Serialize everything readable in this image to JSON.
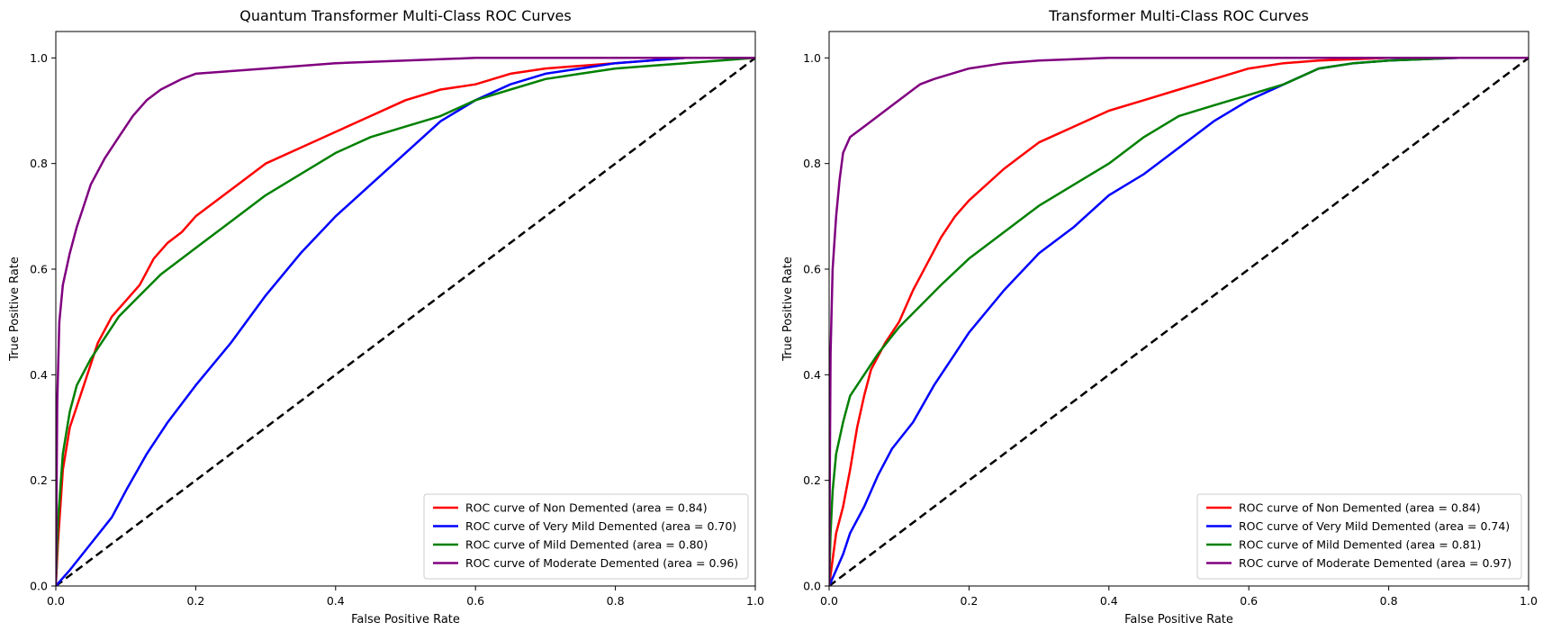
{
  "chart_data": [
    {
      "type": "line",
      "title": "Quantum Transformer Multi-Class ROC Curves",
      "xlabel": "False Positive Rate",
      "ylabel": "True Positive Rate",
      "xlim": [
        0.0,
        1.0
      ],
      "ylim": [
        0.0,
        1.05
      ],
      "xticks": [
        "0.0",
        "0.2",
        "0.4",
        "0.6",
        "0.8",
        "1.0"
      ],
      "yticks": [
        "0.0",
        "0.2",
        "0.4",
        "0.6",
        "0.8",
        "1.0"
      ],
      "grid": false,
      "legend_position": "lower-right",
      "reference_line": {
        "x": [
          0,
          1
        ],
        "y": [
          0,
          1
        ],
        "color": "#000000",
        "style": "dashed"
      },
      "series": [
        {
          "name": "ROC curve of Non Demented (area = 0.84)",
          "color": "#ff0000",
          "x": [
            0,
            0.003,
            0.01,
            0.02,
            0.04,
            0.06,
            0.08,
            0.1,
            0.12,
            0.14,
            0.16,
            0.18,
            0.2,
            0.25,
            0.3,
            0.35,
            0.4,
            0.45,
            0.5,
            0.55,
            0.6,
            0.65,
            0.7,
            0.75,
            0.8,
            0.85,
            0.9,
            0.95,
            1.0
          ],
          "y": [
            0,
            0.08,
            0.22,
            0.3,
            0.38,
            0.46,
            0.51,
            0.54,
            0.57,
            0.62,
            0.65,
            0.67,
            0.7,
            0.75,
            0.8,
            0.83,
            0.86,
            0.89,
            0.92,
            0.94,
            0.95,
            0.97,
            0.98,
            0.985,
            0.99,
            0.995,
            1.0,
            1.0,
            1.0
          ]
        },
        {
          "name": "ROC curve of Very Mild Demented (area = 0.70)",
          "color": "#0000ff",
          "x": [
            0,
            0.02,
            0.05,
            0.08,
            0.1,
            0.13,
            0.16,
            0.2,
            0.25,
            0.3,
            0.35,
            0.4,
            0.45,
            0.5,
            0.55,
            0.6,
            0.65,
            0.7,
            0.75,
            0.8,
            0.85,
            0.9,
            0.95,
            1.0
          ],
          "y": [
            0,
            0.03,
            0.08,
            0.13,
            0.18,
            0.25,
            0.31,
            0.38,
            0.46,
            0.55,
            0.63,
            0.7,
            0.76,
            0.82,
            0.88,
            0.92,
            0.95,
            0.97,
            0.98,
            0.99,
            0.995,
            1.0,
            1.0,
            1.0
          ]
        },
        {
          "name": "ROC curve of Mild Demented (area = 0.80)",
          "color": "#008000",
          "x": [
            0,
            0.003,
            0.01,
            0.02,
            0.03,
            0.05,
            0.07,
            0.09,
            0.12,
            0.15,
            0.18,
            0.2,
            0.25,
            0.3,
            0.35,
            0.4,
            0.45,
            0.5,
            0.55,
            0.6,
            0.65,
            0.7,
            0.75,
            0.8,
            0.85,
            0.9,
            0.95,
            1.0
          ],
          "y": [
            0,
            0.12,
            0.25,
            0.33,
            0.38,
            0.43,
            0.47,
            0.51,
            0.55,
            0.59,
            0.62,
            0.64,
            0.69,
            0.74,
            0.78,
            0.82,
            0.85,
            0.87,
            0.89,
            0.92,
            0.94,
            0.96,
            0.97,
            0.98,
            0.985,
            0.99,
            0.995,
            1.0
          ]
        },
        {
          "name": "ROC curve of Moderate Demented (area = 0.96)",
          "color": "#800080",
          "x": [
            0,
            0.002,
            0.005,
            0.01,
            0.02,
            0.03,
            0.04,
            0.05,
            0.07,
            0.09,
            0.11,
            0.13,
            0.15,
            0.18,
            0.2,
            0.25,
            0.3,
            0.4,
            0.5,
            0.6,
            0.7,
            0.8,
            0.9,
            1.0
          ],
          "y": [
            0,
            0.35,
            0.5,
            0.57,
            0.63,
            0.68,
            0.72,
            0.76,
            0.81,
            0.85,
            0.89,
            0.92,
            0.94,
            0.96,
            0.97,
            0.975,
            0.98,
            0.99,
            0.995,
            1.0,
            1.0,
            1.0,
            1.0,
            1.0
          ]
        }
      ]
    },
    {
      "type": "line",
      "title": "Transformer Multi-Class ROC Curves",
      "xlabel": "False Positive Rate",
      "ylabel": "True Positive Rate",
      "xlim": [
        0.0,
        1.0
      ],
      "ylim": [
        0.0,
        1.05
      ],
      "xticks": [
        "0.0",
        "0.2",
        "0.4",
        "0.6",
        "0.8",
        "1.0"
      ],
      "yticks": [
        "0.0",
        "0.2",
        "0.4",
        "0.6",
        "0.8",
        "1.0"
      ],
      "grid": false,
      "legend_position": "lower-right",
      "reference_line": {
        "x": [
          0,
          1
        ],
        "y": [
          0,
          1
        ],
        "color": "#000000",
        "style": "dashed"
      },
      "series": [
        {
          "name": "ROC curve of Non Demented (area = 0.84)",
          "color": "#ff0000",
          "x": [
            0,
            0.005,
            0.01,
            0.02,
            0.03,
            0.04,
            0.05,
            0.06,
            0.08,
            0.1,
            0.12,
            0.14,
            0.16,
            0.18,
            0.2,
            0.25,
            0.3,
            0.35,
            0.4,
            0.45,
            0.5,
            0.55,
            0.6,
            0.65,
            0.7,
            0.8,
            0.9,
            1.0
          ],
          "y": [
            0,
            0.05,
            0.1,
            0.15,
            0.22,
            0.3,
            0.36,
            0.41,
            0.46,
            0.5,
            0.56,
            0.61,
            0.66,
            0.7,
            0.73,
            0.79,
            0.84,
            0.87,
            0.9,
            0.92,
            0.94,
            0.96,
            0.98,
            0.99,
            0.995,
            1.0,
            1.0,
            1.0
          ]
        },
        {
          "name": "ROC curve of Very Mild Demented (area = 0.74)",
          "color": "#0000ff",
          "x": [
            0,
            0.01,
            0.02,
            0.03,
            0.05,
            0.07,
            0.09,
            0.12,
            0.15,
            0.18,
            0.2,
            0.25,
            0.3,
            0.35,
            0.4,
            0.45,
            0.5,
            0.55,
            0.6,
            0.65,
            0.7,
            0.75,
            0.8,
            0.9,
            1.0
          ],
          "y": [
            0,
            0.03,
            0.06,
            0.1,
            0.15,
            0.21,
            0.26,
            0.31,
            0.38,
            0.44,
            0.48,
            0.56,
            0.63,
            0.68,
            0.74,
            0.78,
            0.83,
            0.88,
            0.92,
            0.95,
            0.98,
            0.99,
            0.995,
            1.0,
            1.0
          ]
        },
        {
          "name": "ROC curve of Mild Demented (area = 0.81)",
          "color": "#008000",
          "x": [
            0,
            0.002,
            0.005,
            0.01,
            0.02,
            0.03,
            0.05,
            0.07,
            0.1,
            0.13,
            0.16,
            0.2,
            0.25,
            0.3,
            0.35,
            0.4,
            0.45,
            0.5,
            0.55,
            0.6,
            0.65,
            0.7,
            0.75,
            0.8,
            0.9,
            1.0
          ],
          "y": [
            0,
            0.1,
            0.18,
            0.25,
            0.31,
            0.36,
            0.4,
            0.44,
            0.49,
            0.53,
            0.57,
            0.62,
            0.67,
            0.72,
            0.76,
            0.8,
            0.85,
            0.89,
            0.91,
            0.93,
            0.95,
            0.98,
            0.99,
            0.995,
            1.0,
            1.0
          ]
        },
        {
          "name": "ROC curve of Moderate Demented (area = 0.97)",
          "color": "#800080",
          "x": [
            0,
            0.002,
            0.005,
            0.01,
            0.015,
            0.02,
            0.03,
            0.05,
            0.07,
            0.09,
            0.11,
            0.13,
            0.15,
            0.2,
            0.25,
            0.3,
            0.4,
            0.5,
            0.6,
            0.8,
            1.0
          ],
          "y": [
            0,
            0.44,
            0.6,
            0.7,
            0.77,
            0.82,
            0.85,
            0.87,
            0.89,
            0.91,
            0.93,
            0.95,
            0.96,
            0.98,
            0.99,
            0.995,
            1.0,
            1.0,
            1.0,
            1.0,
            1.0
          ]
        }
      ]
    }
  ]
}
